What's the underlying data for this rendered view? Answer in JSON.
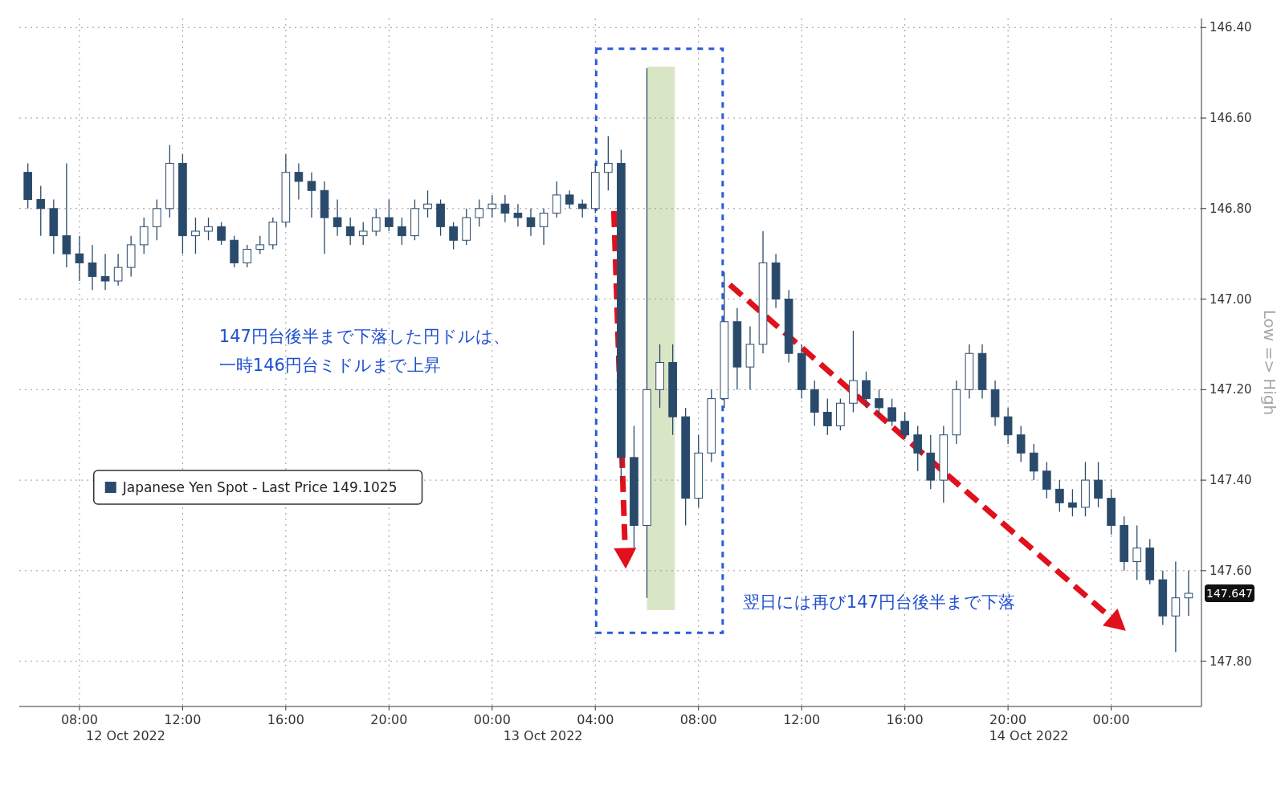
{
  "chart_data": {
    "type": "candlestick",
    "ylabel": "Low => High",
    "legend": "left",
    "grid": true,
    "xlim": [
      "2022-10-12T05:40",
      "2022-10-14T03:30"
    ],
    "ylim": [
      147.9,
      146.38
    ],
    "xticks": [
      {
        "value": "2022-10-12T08:00",
        "label": "08:00"
      },
      {
        "value": "2022-10-12T12:00",
        "label": "12:00"
      },
      {
        "value": "2022-10-12T16:00",
        "label": "16:00"
      },
      {
        "value": "2022-10-12T20:00",
        "label": "20:00"
      },
      {
        "value": "2022-10-13T00:00",
        "label": "00:00"
      },
      {
        "value": "2022-10-13T04:00",
        "label": "04:00"
      },
      {
        "value": "2022-10-13T08:00",
        "label": "08:00"
      },
      {
        "value": "2022-10-13T12:00",
        "label": "12:00"
      },
      {
        "value": "2022-10-13T16:00",
        "label": "16:00"
      },
      {
        "value": "2022-10-13T20:00",
        "label": "20:00"
      },
      {
        "value": "2022-10-14T00:00",
        "label": "00:00"
      }
    ],
    "yticks": [
      {
        "value": 146.4,
        "label": "146.40"
      },
      {
        "value": 146.6,
        "label": "146.60"
      },
      {
        "value": 146.8,
        "label": "146.80"
      },
      {
        "value": 147.0,
        "label": "147.00"
      },
      {
        "value": 147.2,
        "label": "147.20"
      },
      {
        "value": 147.4,
        "label": "147.40"
      },
      {
        "value": 147.6,
        "label": "147.60"
      },
      {
        "value": 147.8,
        "label": "147.80"
      }
    ],
    "bands": [
      {
        "axis": "x",
        "from": "2022-10-13T06:00",
        "to": "2022-10-13T07:05",
        "color": "#d9e6c6"
      }
    ],
    "annotations": [
      "147円台後半まで下落した円ドルは、",
      "一時146円台ミドルまで上昇",
      "翌日には再び147円台後半まで下落",
      "12 Oct 2022",
      "13 Oct 2022",
      "14 Oct 2022",
      "147.647"
    ],
    "x": [
      "2022-10-12T06:00",
      "2022-10-12T06:30",
      "2022-10-12T07:00",
      "2022-10-12T07:30",
      "2022-10-12T08:00",
      "2022-10-12T08:30",
      "2022-10-12T09:00",
      "2022-10-12T09:30",
      "2022-10-12T10:00",
      "2022-10-12T10:30",
      "2022-10-12T11:00",
      "2022-10-12T11:30",
      "2022-10-12T12:00",
      "2022-10-12T12:30",
      "2022-10-12T13:00",
      "2022-10-12T13:30",
      "2022-10-12T14:00",
      "2022-10-12T14:30",
      "2022-10-12T15:00",
      "2022-10-12T15:30",
      "2022-10-12T16:00",
      "2022-10-12T16:30",
      "2022-10-12T17:00",
      "2022-10-12T17:30",
      "2022-10-12T18:00",
      "2022-10-12T18:30",
      "2022-10-12T19:00",
      "2022-10-12T19:30",
      "2022-10-12T20:00",
      "2022-10-12T20:30",
      "2022-10-12T21:00",
      "2022-10-12T21:30",
      "2022-10-12T22:00",
      "2022-10-12T22:30",
      "2022-10-12T23:00",
      "2022-10-12T23:30",
      "2022-10-13T00:00",
      "2022-10-13T00:30",
      "2022-10-13T01:00",
      "2022-10-13T01:30",
      "2022-10-13T02:00",
      "2022-10-13T02:30",
      "2022-10-13T03:00",
      "2022-10-13T03:30",
      "2022-10-13T04:00",
      "2022-10-13T04:30",
      "2022-10-13T05:00",
      "2022-10-13T05:30",
      "2022-10-13T06:00",
      "2022-10-13T06:30",
      "2022-10-13T07:00",
      "2022-10-13T07:30",
      "2022-10-13T08:00",
      "2022-10-13T08:30",
      "2022-10-13T09:00",
      "2022-10-13T09:30",
      "2022-10-13T10:00",
      "2022-10-13T10:30",
      "2022-10-13T11:00",
      "2022-10-13T11:30",
      "2022-10-13T12:00",
      "2022-10-13T12:30",
      "2022-10-13T13:00",
      "2022-10-13T13:30",
      "2022-10-13T14:00",
      "2022-10-13T14:30",
      "2022-10-13T15:00",
      "2022-10-13T15:30",
      "2022-10-13T16:00",
      "2022-10-13T16:30",
      "2022-10-13T17:00",
      "2022-10-13T17:30",
      "2022-10-13T18:00",
      "2022-10-13T18:30",
      "2022-10-13T19:00",
      "2022-10-13T19:30",
      "2022-10-13T20:00",
      "2022-10-13T20:30",
      "2022-10-13T21:00",
      "2022-10-13T21:30",
      "2022-10-13T22:00",
      "2022-10-13T22:30",
      "2022-10-13T23:00",
      "2022-10-13T23:30",
      "2022-10-14T00:00",
      "2022-10-14T00:30",
      "2022-10-14T01:00",
      "2022-10-14T01:30",
      "2022-10-14T02:00",
      "2022-10-14T02:30",
      "2022-10-14T03:00"
    ],
    "series": [
      {
        "name": "Japanese Yen Spot - Last Price 149.1025",
        "color": "#2a4a6b",
        "ohlc": [
          [
            146.72,
            146.8,
            146.7,
            146.78
          ],
          [
            146.78,
            146.86,
            146.75,
            146.8
          ],
          [
            146.8,
            146.9,
            146.78,
            146.86
          ],
          [
            146.86,
            146.93,
            146.7,
            146.9
          ],
          [
            146.9,
            146.96,
            146.86,
            146.92
          ],
          [
            146.92,
            146.98,
            146.88,
            146.95
          ],
          [
            146.95,
            146.98,
            146.9,
            146.96
          ],
          [
            146.96,
            146.97,
            146.9,
            146.93
          ],
          [
            146.93,
            146.95,
            146.86,
            146.88
          ],
          [
            146.88,
            146.9,
            146.82,
            146.84
          ],
          [
            146.84,
            146.87,
            146.78,
            146.8
          ],
          [
            146.8,
            146.82,
            146.66,
            146.7
          ],
          [
            146.7,
            146.9,
            146.68,
            146.86
          ],
          [
            146.86,
            146.9,
            146.82,
            146.85
          ],
          [
            146.85,
            146.87,
            146.82,
            146.84
          ],
          [
            146.84,
            146.88,
            146.83,
            146.87
          ],
          [
            146.87,
            146.93,
            146.86,
            146.92
          ],
          [
            146.92,
            146.93,
            146.88,
            146.89
          ],
          [
            146.89,
            146.9,
            146.86,
            146.88
          ],
          [
            146.88,
            146.89,
            146.82,
            146.83
          ],
          [
            146.83,
            146.84,
            146.68,
            146.72
          ],
          [
            146.72,
            146.78,
            146.7,
            146.74
          ],
          [
            146.74,
            146.82,
            146.72,
            146.76
          ],
          [
            146.76,
            146.9,
            146.74,
            146.82
          ],
          [
            146.82,
            146.86,
            146.78,
            146.84
          ],
          [
            146.84,
            146.88,
            146.82,
            146.86
          ],
          [
            146.86,
            146.88,
            146.83,
            146.85
          ],
          [
            146.85,
            146.86,
            146.8,
            146.82
          ],
          [
            146.82,
            146.85,
            146.78,
            146.84
          ],
          [
            146.84,
            146.88,
            146.82,
            146.86
          ],
          [
            146.86,
            146.87,
            146.78,
            146.8
          ],
          [
            146.8,
            146.82,
            146.76,
            146.79
          ],
          [
            146.79,
            146.86,
            146.78,
            146.84
          ],
          [
            146.84,
            146.89,
            146.83,
            146.87
          ],
          [
            146.87,
            146.88,
            146.8,
            146.82
          ],
          [
            146.82,
            146.84,
            146.78,
            146.8
          ],
          [
            146.8,
            146.82,
            146.77,
            146.79
          ],
          [
            146.79,
            146.83,
            146.77,
            146.81
          ],
          [
            146.81,
            146.84,
            146.79,
            146.82
          ],
          [
            146.82,
            146.86,
            146.8,
            146.84
          ],
          [
            146.84,
            146.88,
            146.8,
            146.81
          ],
          [
            146.81,
            146.82,
            146.74,
            146.77
          ],
          [
            146.77,
            146.8,
            146.76,
            146.79
          ],
          [
            146.79,
            146.82,
            146.78,
            146.8
          ],
          [
            146.8,
            146.81,
            146.7,
            146.72
          ],
          [
            146.72,
            146.76,
            146.64,
            146.7
          ],
          [
            146.7,
            147.4,
            146.67,
            147.35
          ],
          [
            147.35,
            147.55,
            147.28,
            147.5
          ],
          [
            147.5,
            147.66,
            146.49,
            147.2
          ],
          [
            147.2,
            147.24,
            147.1,
            147.14
          ],
          [
            147.14,
            147.3,
            147.1,
            147.26
          ],
          [
            147.26,
            147.5,
            147.24,
            147.44
          ],
          [
            147.44,
            147.46,
            147.3,
            147.34
          ],
          [
            147.34,
            147.36,
            147.2,
            147.22
          ],
          [
            147.22,
            147.24,
            146.94,
            147.05
          ],
          [
            147.05,
            147.2,
            147.02,
            147.15
          ],
          [
            147.15,
            147.2,
            147.06,
            147.1
          ],
          [
            147.1,
            147.12,
            146.85,
            146.92
          ],
          [
            146.92,
            147.02,
            146.9,
            147.0
          ],
          [
            147.0,
            147.14,
            146.98,
            147.12
          ],
          [
            147.12,
            147.22,
            147.1,
            147.2
          ],
          [
            147.2,
            147.28,
            147.18,
            147.25
          ],
          [
            147.25,
            147.3,
            147.22,
            147.28
          ],
          [
            147.28,
            147.29,
            147.22,
            147.23
          ],
          [
            147.23,
            147.25,
            147.07,
            147.18
          ],
          [
            147.18,
            147.24,
            147.16,
            147.22
          ],
          [
            147.22,
            147.26,
            147.2,
            147.24
          ],
          [
            147.24,
            147.28,
            147.22,
            147.27
          ],
          [
            147.27,
            147.31,
            147.25,
            147.3
          ],
          [
            147.3,
            147.38,
            147.28,
            147.34
          ],
          [
            147.34,
            147.42,
            147.3,
            147.4
          ],
          [
            147.4,
            147.45,
            147.28,
            147.3
          ],
          [
            147.3,
            147.32,
            147.18,
            147.2
          ],
          [
            147.2,
            147.22,
            147.1,
            147.12
          ],
          [
            147.12,
            147.22,
            147.1,
            147.2
          ],
          [
            147.2,
            147.28,
            147.18,
            147.26
          ],
          [
            147.26,
            147.32,
            147.24,
            147.3
          ],
          [
            147.3,
            147.36,
            147.28,
            147.34
          ],
          [
            147.34,
            147.4,
            147.32,
            147.38
          ],
          [
            147.38,
            147.44,
            147.36,
            147.42
          ],
          [
            147.42,
            147.47,
            147.4,
            147.45
          ],
          [
            147.45,
            147.48,
            147.42,
            147.46
          ],
          [
            147.46,
            147.48,
            147.36,
            147.4
          ],
          [
            147.4,
            147.46,
            147.36,
            147.44
          ],
          [
            147.44,
            147.52,
            147.42,
            147.5
          ],
          [
            147.5,
            147.6,
            147.48,
            147.58
          ],
          [
            147.58,
            147.62,
            147.5,
            147.55
          ],
          [
            147.55,
            147.63,
            147.53,
            147.62
          ],
          [
            147.62,
            147.72,
            147.6,
            147.7
          ],
          [
            147.7,
            147.78,
            147.58,
            147.66
          ],
          [
            147.66,
            147.7,
            147.6,
            147.65
          ]
        ]
      }
    ]
  }
}
